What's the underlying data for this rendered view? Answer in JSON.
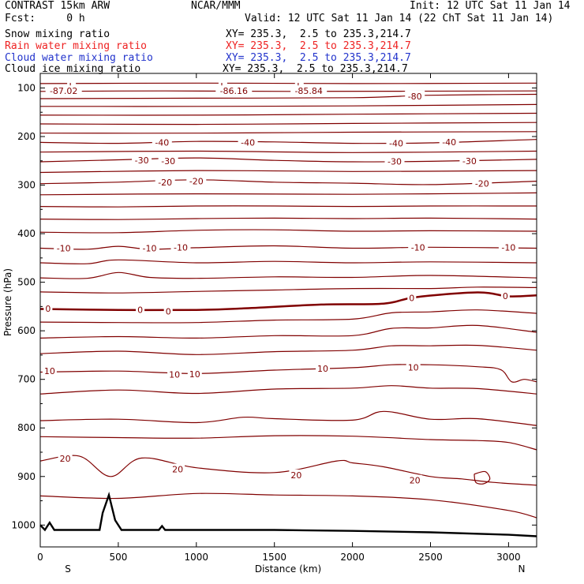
{
  "header": {
    "model": "CONTRAST 15km ARW",
    "org": "NCAR/MMM",
    "init": "Init: 12 UTC Sat 11 Jan 14",
    "fcst": "Fcst:     0 h",
    "valid": "Valid: 12 UTC Sat 11 Jan 14 (22 ChT Sat 11 Jan 14)",
    "fields": [
      {
        "name": "Snow mixing ratio",
        "xy": "XY= 235.3,  2.5 to 235.3,214.7",
        "color": "#000000"
      },
      {
        "name": "Rain water mixing ratio",
        "xy": "XY= 235.3,  2.5 to 235.3,214.7",
        "color": "#ee2222"
      },
      {
        "name": "Cloud water mixing ratio",
        "xy": "XY= 235.3,  2.5 to 235.3,214.7",
        "color": "#2233cc"
      },
      {
        "name": "Cloud ice mixing ratio",
        "xy": "XY= 235.3,  2.5 to 235.3,214.7",
        "color": "#000000"
      }
    ]
  },
  "chart_data": {
    "type": "line",
    "xlabel": "Distance (km)",
    "ylabel": "Pressure (hPa)",
    "xlim": [
      0,
      3180
    ],
    "ylim": [
      1045,
      70
    ],
    "xticks": [
      0,
      500,
      1000,
      1500,
      2000,
      2500,
      3000
    ],
    "yticks": [
      100,
      200,
      300,
      400,
      500,
      600,
      700,
      800,
      900,
      1000
    ],
    "end_labels": {
      "left": "S",
      "right": "N"
    },
    "isotherm_color": "#800000",
    "terrain_color": "#000000",
    "isotherms": [
      {
        "label": "",
        "points": [
          [
            0,
            91
          ],
          [
            1000,
            90
          ],
          [
            2000,
            91
          ],
          [
            3180,
            90
          ]
        ]
      },
      {
        "label": "",
        "points": [
          [
            0,
            107
          ],
          [
            800,
            106
          ],
          [
            1600,
            107
          ],
          [
            3180,
            106
          ]
        ]
      },
      {
        "label": "-80",
        "points": [
          [
            0,
            122
          ],
          [
            1000,
            121
          ],
          [
            2000,
            120
          ],
          [
            2500,
            115
          ],
          [
            3180,
            113
          ]
        ]
      },
      {
        "label": "",
        "points": [
          [
            0,
            138
          ],
          [
            1000,
            138
          ],
          [
            2000,
            137
          ],
          [
            3180,
            134
          ]
        ]
      },
      {
        "label": "",
        "points": [
          [
            0,
            156
          ],
          [
            1000,
            156
          ],
          [
            2000,
            154
          ],
          [
            3180,
            152
          ]
        ]
      },
      {
        "label": "",
        "points": [
          [
            0,
            174
          ],
          [
            1000,
            175
          ],
          [
            2000,
            173
          ],
          [
            3180,
            171
          ]
        ]
      },
      {
        "label": "",
        "points": [
          [
            0,
            193
          ],
          [
            1000,
            193
          ],
          [
            2000,
            191
          ],
          [
            3180,
            190
          ]
        ]
      },
      {
        "label": "-40",
        "points": [
          [
            0,
            212
          ],
          [
            500,
            214
          ],
          [
            1000,
            210
          ],
          [
            1500,
            211
          ],
          [
            2000,
            214
          ],
          [
            2500,
            213
          ],
          [
            3180,
            206
          ]
        ]
      },
      {
        "label": "",
        "points": [
          [
            0,
            232
          ],
          [
            1000,
            230
          ],
          [
            2000,
            233
          ],
          [
            3180,
            230
          ]
        ]
      },
      {
        "label": "-30",
        "points": [
          [
            0,
            252
          ],
          [
            500,
            248
          ],
          [
            1000,
            244
          ],
          [
            1500,
            249
          ],
          [
            2000,
            252
          ],
          [
            2500,
            251
          ],
          [
            3180,
            247
          ]
        ]
      },
      {
        "label": "",
        "points": [
          [
            0,
            274
          ],
          [
            1000,
            270
          ],
          [
            2000,
            272
          ],
          [
            3180,
            270
          ]
        ]
      },
      {
        "label": "-20",
        "points": [
          [
            0,
            297
          ],
          [
            500,
            294
          ],
          [
            1000,
            289
          ],
          [
            1500,
            294
          ],
          [
            2000,
            296
          ],
          [
            2500,
            299
          ],
          [
            3180,
            292
          ]
        ]
      },
      {
        "label": "",
        "points": [
          [
            0,
            320
          ],
          [
            1000,
            318
          ],
          [
            2000,
            319
          ],
          [
            3180,
            316
          ]
        ]
      },
      {
        "label": "",
        "points": [
          [
            0,
            344
          ],
          [
            500,
            345
          ],
          [
            1000,
            343
          ],
          [
            1500,
            343
          ],
          [
            2000,
            344
          ],
          [
            2500,
            343
          ],
          [
            3180,
            343
          ]
        ]
      },
      {
        "label": "",
        "points": [
          [
            0,
            370
          ],
          [
            500,
            371
          ],
          [
            1000,
            369
          ],
          [
            1500,
            368
          ],
          [
            2000,
            369
          ],
          [
            2500,
            368
          ],
          [
            3180,
            370
          ]
        ]
      },
      {
        "label": "",
        "points": [
          [
            0,
            397
          ],
          [
            500,
            398
          ],
          [
            1000,
            393
          ],
          [
            1500,
            392
          ],
          [
            2000,
            395
          ],
          [
            2500,
            394
          ],
          [
            3180,
            395
          ]
        ]
      },
      {
        "label": "-10",
        "points": [
          [
            0,
            430
          ],
          [
            300,
            432
          ],
          [
            500,
            426
          ],
          [
            700,
            432
          ],
          [
            1000,
            429
          ],
          [
            1500,
            425
          ],
          [
            2000,
            430
          ],
          [
            2500,
            428
          ],
          [
            3180,
            430
          ]
        ]
      },
      {
        "label": "",
        "points": [
          [
            0,
            460
          ],
          [
            300,
            462
          ],
          [
            500,
            454
          ],
          [
            1000,
            460
          ],
          [
            1500,
            457
          ],
          [
            2000,
            460
          ],
          [
            2500,
            458
          ],
          [
            3180,
            460
          ]
        ]
      },
      {
        "label": "",
        "points": [
          [
            0,
            491
          ],
          [
            300,
            492
          ],
          [
            500,
            480
          ],
          [
            700,
            490
          ],
          [
            1000,
            492
          ],
          [
            1500,
            489
          ],
          [
            2000,
            490
          ],
          [
            2500,
            486
          ],
          [
            3180,
            491
          ]
        ]
      },
      {
        "label": "",
        "points": [
          [
            0,
            520
          ],
          [
            500,
            522
          ],
          [
            1000,
            519
          ],
          [
            1500,
            516
          ],
          [
            2000,
            513
          ],
          [
            2500,
            513
          ],
          [
            2800,
            510
          ],
          [
            3180,
            511
          ]
        ]
      },
      {
        "label": "0",
        "width": 2.5,
        "points": [
          [
            0,
            555
          ],
          [
            500,
            557
          ],
          [
            1000,
            557
          ],
          [
            1300,
            554
          ],
          [
            1800,
            546
          ],
          [
            2200,
            544
          ],
          [
            2400,
            531
          ],
          [
            2800,
            521
          ],
          [
            3000,
            529
          ],
          [
            3180,
            527
          ]
        ]
      },
      {
        "label": "",
        "points": [
          [
            0,
            582
          ],
          [
            500,
            583
          ],
          [
            1000,
            583
          ],
          [
            1500,
            578
          ],
          [
            2000,
            576
          ],
          [
            2250,
            563
          ],
          [
            2500,
            561
          ],
          [
            2800,
            557
          ],
          [
            3180,
            564
          ]
        ]
      },
      {
        "label": "",
        "points": [
          [
            0,
            615
          ],
          [
            500,
            612
          ],
          [
            1000,
            615
          ],
          [
            1500,
            610
          ],
          [
            2000,
            610
          ],
          [
            2250,
            595
          ],
          [
            2500,
            594
          ],
          [
            2800,
            589
          ],
          [
            3180,
            603
          ]
        ]
      },
      {
        "label": "",
        "points": [
          [
            0,
            647
          ],
          [
            500,
            642
          ],
          [
            1000,
            649
          ],
          [
            1500,
            643
          ],
          [
            2000,
            640
          ],
          [
            2250,
            631
          ],
          [
            2500,
            631
          ],
          [
            2800,
            630
          ],
          [
            3180,
            640
          ]
        ]
      },
      {
        "label": "10",
        "points": [
          [
            0,
            685
          ],
          [
            500,
            683
          ],
          [
            1000,
            688
          ],
          [
            1500,
            681
          ],
          [
            2000,
            676
          ],
          [
            2250,
            670
          ],
          [
            2500,
            670
          ],
          [
            2800,
            674
          ],
          [
            2950,
            680
          ],
          [
            3020,
            705
          ],
          [
            3100,
            700
          ],
          [
            3180,
            705
          ]
        ]
      },
      {
        "label": "",
        "points": [
          [
            0,
            730
          ],
          [
            500,
            722
          ],
          [
            1000,
            729
          ],
          [
            1500,
            720
          ],
          [
            2000,
            718
          ],
          [
            2250,
            713
          ],
          [
            2500,
            718
          ],
          [
            2800,
            719
          ],
          [
            3180,
            730
          ]
        ]
      },
      {
        "label": "",
        "points": [
          [
            0,
            785
          ],
          [
            500,
            782
          ],
          [
            1000,
            789
          ],
          [
            1300,
            778
          ],
          [
            1500,
            781
          ],
          [
            2000,
            784
          ],
          [
            2200,
            766
          ],
          [
            2500,
            782
          ],
          [
            2800,
            781
          ],
          [
            3180,
            795
          ]
        ]
      },
      {
        "label": "",
        "points": [
          [
            0,
            818
          ],
          [
            500,
            820
          ],
          [
            1000,
            821
          ],
          [
            1500,
            816
          ],
          [
            2000,
            817
          ],
          [
            2500,
            824
          ],
          [
            2800,
            826
          ],
          [
            3000,
            830
          ],
          [
            3180,
            845
          ]
        ]
      },
      {
        "label": "20",
        "points": [
          [
            0,
            868
          ],
          [
            250,
            858
          ],
          [
            450,
            900
          ],
          [
            650,
            862
          ],
          [
            1000,
            882
          ],
          [
            1500,
            892
          ],
          [
            1900,
            868
          ],
          [
            2000,
            872
          ],
          [
            2200,
            880
          ],
          [
            2500,
            900
          ],
          [
            2700,
            905
          ],
          [
            2900,
            912
          ],
          [
            3180,
            918
          ]
        ]
      },
      {
        "label": "",
        "points": [
          [
            0,
            940
          ],
          [
            500,
            945
          ],
          [
            1000,
            935
          ],
          [
            1500,
            938
          ],
          [
            2000,
            940
          ],
          [
            2500,
            948
          ],
          [
            3000,
            970
          ],
          [
            3180,
            985
          ]
        ]
      }
    ],
    "terrain": [
      [
        0,
        1000
      ],
      [
        30,
        1010
      ],
      [
        60,
        995
      ],
      [
        90,
        1010
      ],
      [
        380,
        1010
      ],
      [
        400,
        975
      ],
      [
        440,
        938
      ],
      [
        480,
        990
      ],
      [
        520,
        1010
      ],
      [
        760,
        1010
      ],
      [
        780,
        1002
      ],
      [
        800,
        1010
      ],
      [
        1500,
        1010
      ],
      [
        2000,
        1012
      ],
      [
        2500,
        1015
      ],
      [
        3000,
        1020
      ],
      [
        3180,
        1023
      ]
    ],
    "extra_contours": [
      {
        "label": "",
        "points": [
          [
            2780,
            895
          ],
          [
            2850,
            890
          ],
          [
            2880,
            905
          ],
          [
            2840,
            915
          ],
          [
            2790,
            912
          ],
          [
            2780,
            895
          ]
        ]
      }
    ],
    "annotations": [
      {
        "text": "L",
        "x": 200,
        "p": 96
      },
      {
        "text": "-87.02",
        "x": 150,
        "p": 106
      },
      {
        "text": "L",
        "x": 1170,
        "p": 96
      },
      {
        "text": "-86.16",
        "x": 1240,
        "p": 106
      },
      {
        "text": "L",
        "x": 1660,
        "p": 96
      },
      {
        "text": "-85.84",
        "x": 1720,
        "p": 106
      },
      {
        "text": "-80",
        "x": 2400,
        "p": 117
      },
      {
        "text": "-40",
        "x": 780,
        "p": 212
      },
      {
        "text": "-40",
        "x": 1330,
        "p": 212
      },
      {
        "text": "-40",
        "x": 2280,
        "p": 214
      },
      {
        "text": "-40",
        "x": 2620,
        "p": 211
      },
      {
        "text": "-30",
        "x": 650,
        "p": 249
      },
      {
        "text": "-30",
        "x": 820,
        "p": 250
      },
      {
        "text": "-30",
        "x": 2270,
        "p": 251
      },
      {
        "text": "-30",
        "x": 2750,
        "p": 250
      },
      {
        "text": "-20",
        "x": 800,
        "p": 294
      },
      {
        "text": "-20",
        "x": 1000,
        "p": 292
      },
      {
        "text": "-20",
        "x": 2830,
        "p": 297
      },
      {
        "text": "-10",
        "x": 150,
        "p": 430
      },
      {
        "text": "-10",
        "x": 700,
        "p": 430
      },
      {
        "text": "-10",
        "x": 900,
        "p": 428
      },
      {
        "text": "-10",
        "x": 2420,
        "p": 428
      },
      {
        "text": "-10",
        "x": 3000,
        "p": 428
      },
      {
        "text": "0",
        "x": 50,
        "p": 554
      },
      {
        "text": "0",
        "x": 640,
        "p": 557
      },
      {
        "text": "0",
        "x": 820,
        "p": 560
      },
      {
        "text": "0",
        "x": 2380,
        "p": 532
      },
      {
        "text": "0",
        "x": 2980,
        "p": 528
      },
      {
        "text": "10",
        "x": 60,
        "p": 683
      },
      {
        "text": "10",
        "x": 860,
        "p": 690
      },
      {
        "text": "10",
        "x": 990,
        "p": 689
      },
      {
        "text": "10",
        "x": 1810,
        "p": 678
      },
      {
        "text": "10",
        "x": 2390,
        "p": 675
      },
      {
        "text": "20",
        "x": 160,
        "p": 863
      },
      {
        "text": "20",
        "x": 880,
        "p": 885
      },
      {
        "text": "20",
        "x": 1640,
        "p": 897
      },
      {
        "text": "20",
        "x": 2400,
        "p": 908
      }
    ]
  }
}
